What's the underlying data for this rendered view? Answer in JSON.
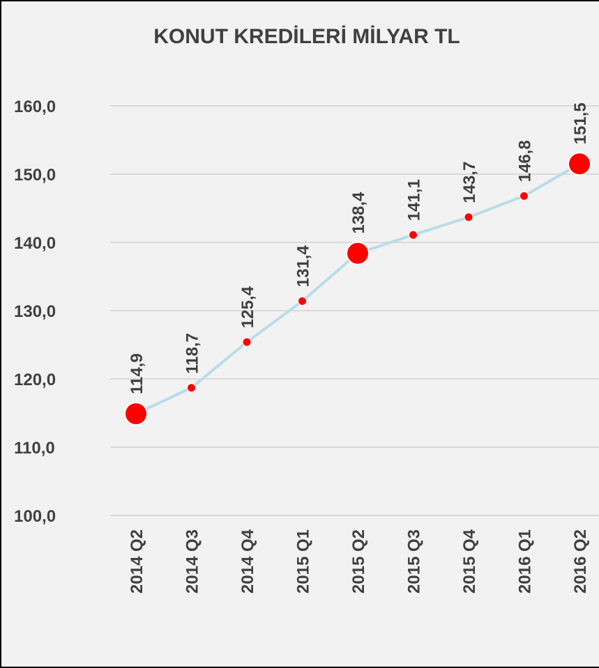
{
  "chart_data": {
    "type": "line",
    "title": "KONUT KREDİLERİ MİLYAR TL",
    "categories": [
      "2014 Q2",
      "2014 Q3",
      "2014 Q4",
      "2015 Q1",
      "2015 Q2",
      "2015 Q3",
      "2015 Q4",
      "2016 Q1",
      "2016 Q2"
    ],
    "series": [
      {
        "color": "#b7dde8",
        "marker_color": "#ff0000",
        "values": [
          114.9,
          118.7,
          125.4,
          131.4,
          138.4,
          141.1,
          143.7,
          146.8,
          151.5
        ],
        "value_labels": [
          "114,9",
          "118,7",
          "125,4",
          "131,4",
          "138,4",
          "141,1",
          "143,7",
          "146,8",
          "151,5"
        ],
        "large_markers": [
          true,
          false,
          false,
          false,
          true,
          false,
          false,
          false,
          true
        ]
      }
    ],
    "ylim": [
      100,
      160
    ],
    "yticks": [
      {
        "value": 100,
        "label": "100,0"
      },
      {
        "value": 110,
        "label": "110,0"
      },
      {
        "value": 120,
        "label": "120,0"
      },
      {
        "value": 130,
        "label": "130,0"
      },
      {
        "value": 140,
        "label": "140,0"
      },
      {
        "value": 150,
        "label": "150,0"
      },
      {
        "value": 160,
        "label": "160,0"
      }
    ],
    "grid": true
  }
}
